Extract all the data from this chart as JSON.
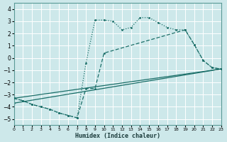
{
  "xlabel": "Humidex (Indice chaleur)",
  "bg_color": "#cde8ea",
  "grid_color": "#b8d8da",
  "line_color": "#1a6e68",
  "xlim": [
    0,
    23
  ],
  "ylim": [
    -5.5,
    4.5
  ],
  "xticks": [
    0,
    1,
    2,
    3,
    4,
    5,
    6,
    7,
    8,
    9,
    10,
    11,
    12,
    13,
    14,
    15,
    16,
    17,
    18,
    19,
    20,
    21,
    22,
    23
  ],
  "yticks": [
    -5,
    -4,
    -3,
    -2,
    -1,
    0,
    1,
    2,
    3,
    4
  ],
  "line1_x": [
    0,
    1,
    2,
    3,
    4,
    5,
    6,
    7,
    8,
    9,
    10,
    11,
    12,
    13,
    14,
    15,
    16,
    17,
    18,
    19,
    20,
    21,
    22,
    23
  ],
  "line1_y": [
    -3.3,
    -3.5,
    -3.8,
    -4.0,
    -4.2,
    -4.5,
    -4.7,
    -4.9,
    -0.4,
    3.1,
    3.1,
    3.0,
    2.3,
    2.5,
    3.3,
    3.3,
    2.9,
    2.5,
    2.3,
    2.3,
    1.1,
    -0.2,
    -0.8,
    -0.9
  ],
  "line2_x": [
    0,
    1,
    2,
    3,
    4,
    5,
    6,
    7,
    8,
    9,
    10,
    19,
    20,
    21,
    22,
    23
  ],
  "line2_y": [
    -3.3,
    -3.5,
    -3.8,
    -4.0,
    -4.2,
    -4.5,
    -4.7,
    -4.9,
    -2.5,
    -2.5,
    0.4,
    2.3,
    1.1,
    -0.2,
    -0.8,
    -0.9
  ],
  "line3_x": [
    0,
    23
  ],
  "line3_y": [
    -3.3,
    -0.9
  ],
  "line4_x": [
    0,
    23
  ],
  "line4_y": [
    -3.7,
    -0.9
  ]
}
